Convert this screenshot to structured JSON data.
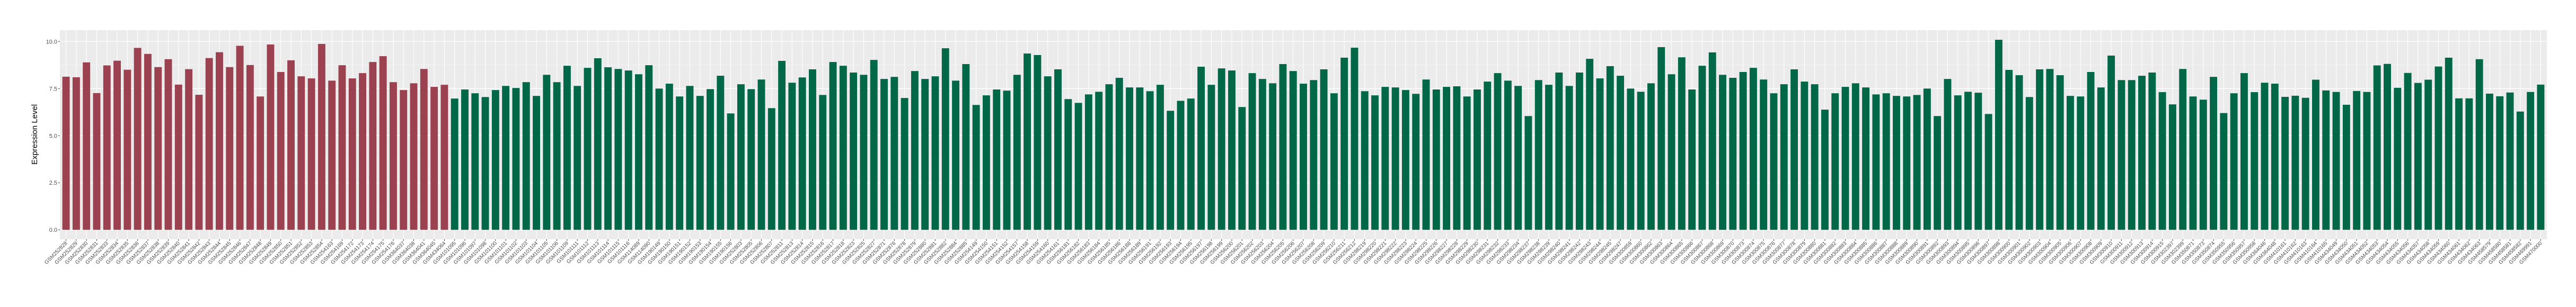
{
  "chart_data": {
    "type": "bar",
    "title": "",
    "xlabel": "",
    "ylabel": "Expression Level",
    "ylim": [
      -0.5,
      10.6
    ],
    "yticks": [
      "0.0",
      "2.5",
      "5.0",
      "7.5",
      "10.0"
    ],
    "ytick_values": [
      0,
      2.5,
      5,
      7.5,
      10
    ],
    "grid": true,
    "legend": "none",
    "background": "#ebebeb",
    "colors": {
      "group1": "#9b4150",
      "group2": "#006747"
    },
    "color_groups": [
      {
        "color": "group1",
        "first": "GSM252828",
        "last": "GSM434064"
      },
      {
        "color": "group2",
        "first": "GSM101095",
        "last": "GSM470000"
      }
    ],
    "categories": [
      "GSM252828",
      "GSM252829",
      "GSM252830",
      "GSM252831",
      "GSM252833",
      "GSM252834",
      "GSM252835",
      "GSM252836",
      "GSM252837",
      "GSM252838",
      "GSM252839",
      "GSM252840",
      "GSM252841",
      "GSM252842",
      "GSM252843",
      "GSM252844",
      "GSM252845",
      "GSM252846",
      "GSM252847",
      "GSM252848",
      "GSM252849",
      "GSM252850",
      "GSM252851",
      "GSM252852",
      "GSM252853",
      "GSM252854",
      "GSM254163",
      "GSM254169",
      "GSM254172",
      "GSM254173",
      "GSM254174",
      "GSM254175",
      "GSM254176",
      "GSM364037",
      "GSM364038",
      "GSM364041",
      "GSM364045",
      "GSM434064",
      "GSM101095",
      "GSM101096",
      "GSM101097",
      "GSM101098",
      "GSM101100",
      "GSM101101",
      "GSM101102",
      "GSM101103",
      "GSM101104",
      "GSM101105",
      "GSM101106",
      "GSM101109",
      "GSM101111",
      "GSM101112",
      "GSM101113",
      "GSM101114",
      "GSM101115",
      "GSM101116",
      "GSM114089",
      "GSM114090",
      "GSM190149",
      "GSM190150",
      "GSM190151",
      "GSM190152",
      "GSM190153",
      "GSM190154",
      "GSM190155",
      "GSM190156",
      "GSM252803",
      "GSM252805",
      "GSM252806",
      "GSM252807",
      "GSM252811",
      "GSM252813",
      "GSM252814",
      "GSM252815",
      "GSM252816",
      "GSM252817",
      "GSM252818",
      "GSM252823",
      "GSM252825",
      "GSM252827",
      "GSM252871",
      "GSM252876",
      "GSM252878",
      "GSM252879",
      "GSM252880",
      "GSM252881",
      "GSM252882",
      "GSM252884",
      "GSM252885",
      "GSM254149",
      "GSM254150",
      "GSM254151",
      "GSM254152",
      "GSM254157",
      "GSM254158",
      "GSM254159",
      "GSM254160",
      "GSM254161",
      "GSM256181",
      "GSM256182",
      "GSM256183",
      "GSM256184",
      "GSM256185",
      "GSM256186",
      "GSM256188",
      "GSM256189",
      "GSM256191",
      "GSM256192",
      "GSM256193",
      "GSM256194",
      "GSM256195",
      "GSM256197",
      "GSM256198",
      "GSM256199",
      "GSM256200",
      "GSM256201",
      "GSM256202",
      "GSM256203",
      "GSM256204",
      "GSM256205",
      "GSM256206",
      "GSM256207",
      "GSM256208",
      "GSM256209",
      "GSM256210",
      "GSM256211",
      "GSM256212",
      "GSM298219",
      "GSM298220",
      "GSM298221",
      "GSM298222",
      "GSM298223",
      "GSM298224",
      "GSM298225",
      "GSM298226",
      "GSM298227",
      "GSM298228",
      "GSM298229",
      "GSM298230",
      "GSM298231",
      "GSM298232",
      "GSM298233",
      "GSM298234",
      "GSM298237",
      "GSM298238",
      "GSM298239",
      "GSM298240",
      "GSM298241",
      "GSM298242",
      "GSM298243",
      "GSM298244",
      "GSM298245",
      "GSM298247",
      "GSM300859",
      "GSM300860",
      "GSM300862",
      "GSM300863",
      "GSM300864",
      "GSM300865",
      "GSM300866",
      "GSM300867",
      "GSM300868",
      "GSM300869",
      "GSM300870",
      "GSM300873",
      "GSM300874",
      "GSM300875",
      "GSM300876",
      "GSM300877",
      "GSM300878",
      "GSM300879",
      "GSM300880",
      "GSM300881",
      "GSM300882",
      "GSM300883",
      "GSM300884",
      "GSM300885",
      "GSM300886",
      "GSM300887",
      "GSM300888",
      "GSM300889",
      "GSM300890",
      "GSM300891",
      "GSM300892",
      "GSM300893",
      "GSM300894",
      "GSM300895",
      "GSM300896",
      "GSM300897",
      "GSM300898",
      "GSM300900",
      "GSM300901",
      "GSM300902",
      "GSM300903",
      "GSM300904",
      "GSM300905",
      "GSM300906",
      "GSM300907",
      "GSM300908",
      "GSM300909",
      "GSM300910",
      "GSM300911",
      "GSM300912",
      "GSM300913",
      "GSM300914",
      "GSM300915",
      "GSM302397",
      "GSM302399",
      "GSM350871",
      "GSM350873",
      "GSM350874",
      "GSM350955",
      "GSM350956",
      "GSM350957",
      "GSM350958",
      "GSM364046",
      "GSM364048",
      "GSM410161",
      "GSM410162",
      "GSM410163",
      "GSM410164",
      "GSM410165",
      "GSM434049",
      "GSM434050",
      "GSM434051",
      "GSM434052",
      "GSM434053",
      "GSM434054",
      "GSM434055",
      "GSM434056",
      "GSM434057",
      "GSM434058",
      "GSM434059",
      "GSM434060",
      "GSM434061",
      "GSM434062",
      "GSM434063",
      "GSM458579",
      "GSM458580",
      "GSM458581",
      "GSM458582",
      "GSM469991",
      "GSM470000"
    ],
    "values": [
      8.13,
      8.1,
      8.89,
      7.26,
      8.73,
      8.98,
      8.5,
      9.66,
      9.34,
      8.64,
      9.06,
      7.71,
      8.53,
      7.17,
      9.12,
      9.43,
      8.64,
      9.77,
      8.75,
      7.08,
      9.84,
      8.38,
      9.0,
      8.15,
      8.04,
      9.87,
      7.92,
      8.74,
      8.04,
      8.32,
      8.91,
      9.22,
      7.84,
      7.42,
      7.78,
      8.54,
      7.59,
      7.7,
      6.97,
      7.45,
      7.25,
      7.05,
      7.42,
      7.64,
      7.53,
      7.84,
      7.11,
      8.23,
      7.84,
      8.71,
      7.64,
      8.6,
      9.11,
      8.63,
      8.54,
      8.46,
      8.26,
      8.74,
      7.5,
      7.76,
      7.08,
      7.64,
      7.11,
      7.47,
      8.18,
      6.18,
      7.73,
      7.47,
      7.98,
      6.46,
      8.97,
      7.81,
      8.09,
      8.52,
      7.16,
      8.91,
      8.71,
      8.35,
      8.23,
      9.02,
      8.01,
      8.12,
      7.0,
      8.43,
      8.01,
      8.15,
      9.64,
      7.92,
      8.8,
      6.63,
      7.14,
      7.45,
      7.39,
      8.23,
      9.36,
      9.28,
      8.15,
      8.52,
      6.94,
      6.74,
      7.19,
      7.33,
      7.73,
      8.07,
      7.56,
      7.56,
      7.36,
      7.7,
      6.32,
      6.85,
      6.97,
      8.66,
      7.7,
      8.57,
      8.46,
      6.52,
      8.32,
      8.01,
      7.78,
      8.8,
      8.43,
      7.76,
      7.95,
      8.52,
      7.25,
      9.14,
      9.67,
      7.36,
      7.14,
      7.59,
      7.56,
      7.42,
      7.22,
      7.98,
      7.45,
      7.59,
      7.62,
      7.08,
      7.45,
      7.87,
      8.32,
      7.92,
      7.64,
      6.04,
      7.95,
      7.7,
      8.35,
      7.64,
      8.35,
      9.08,
      8.04,
      8.69,
      8.18,
      7.5,
      7.33,
      7.78,
      9.7,
      8.26,
      9.16,
      7.45,
      8.71,
      9.42,
      8.23,
      8.07,
      8.38,
      8.6,
      7.98,
      7.25,
      7.73,
      8.52,
      7.87,
      7.73,
      6.38,
      7.25,
      7.59,
      7.78,
      7.56,
      7.19,
      7.25,
      7.11,
      7.08,
      7.16,
      7.5,
      6.04,
      8.01,
      7.14,
      7.33,
      7.28,
      6.15,
      10.09,
      8.49,
      8.21,
      7.05,
      8.52,
      8.54,
      8.21,
      7.11,
      7.08,
      8.38,
      7.56,
      9.25,
      7.95,
      7.95,
      8.18,
      8.35,
      7.31,
      6.66,
      8.54,
      7.08,
      6.91,
      8.12,
      6.2,
      7.25,
      8.32,
      7.31,
      7.81,
      7.76,
      7.06,
      7.12,
      7.01,
      7.97,
      7.4,
      7.32,
      6.64,
      7.37,
      7.32,
      8.73,
      8.81,
      7.54,
      8.33,
      7.8,
      7.97,
      8.67,
      9.14,
      6.98,
      6.98,
      9.06,
      7.23,
      7.09,
      7.29,
      6.28,
      7.32,
      7.71
    ]
  }
}
